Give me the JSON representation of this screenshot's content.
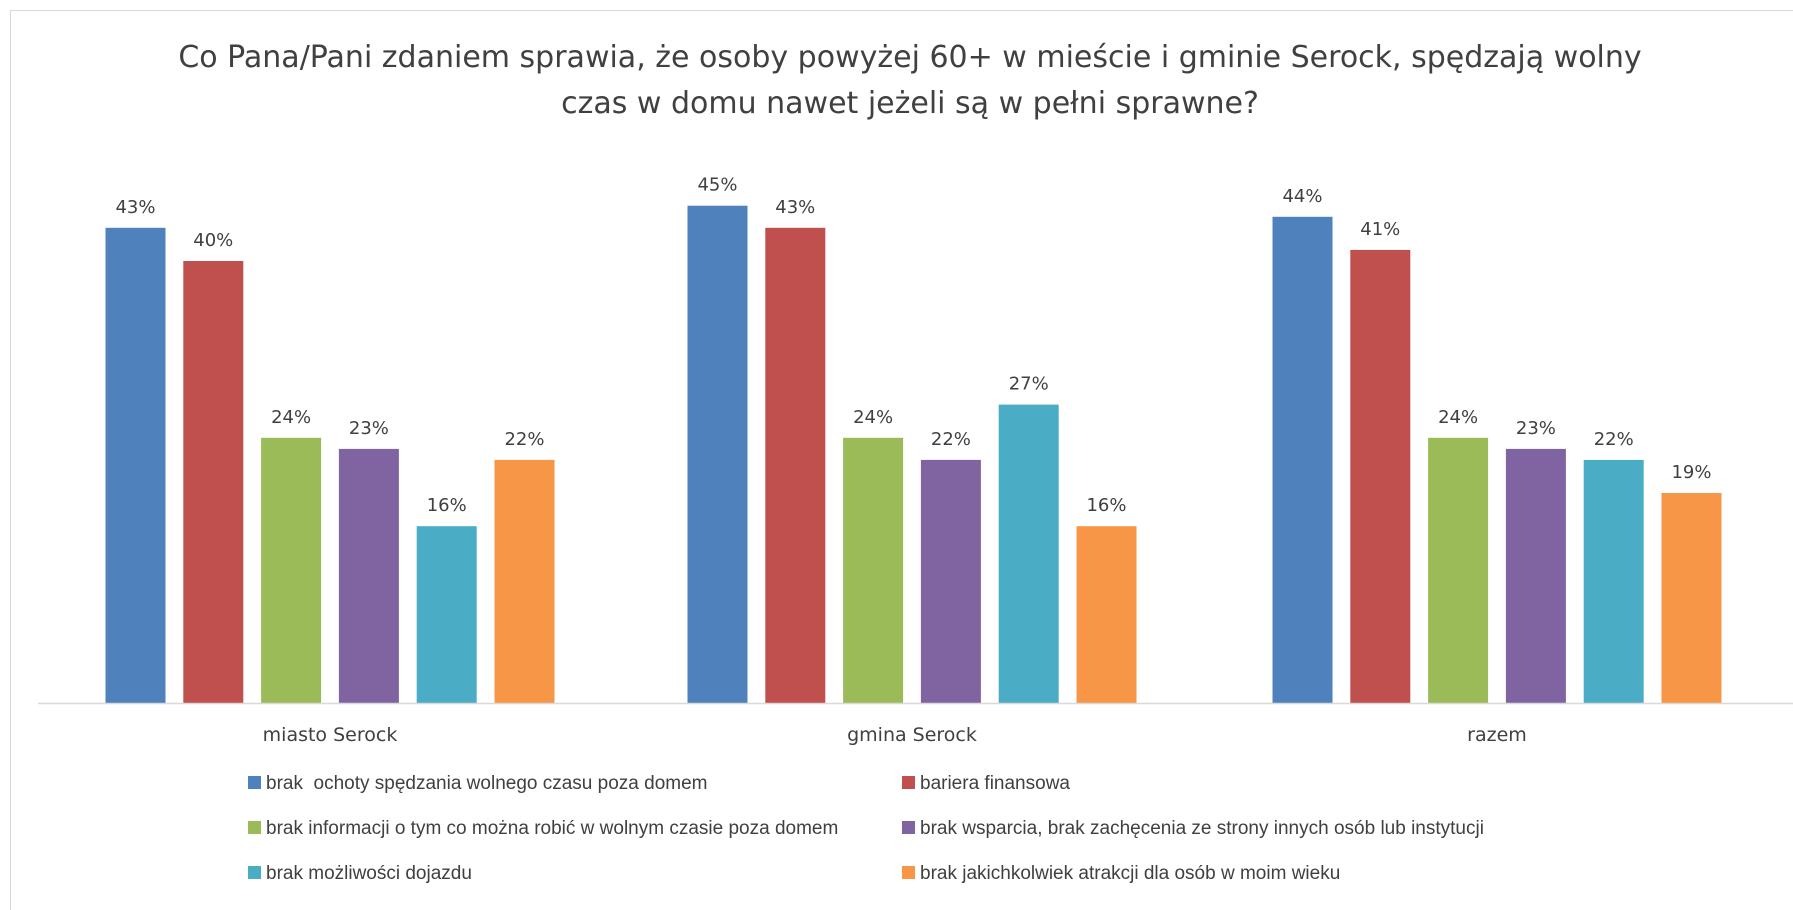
{
  "chart_data": {
    "type": "bar",
    "title_lines": [
      "Co Pana/Pani zdaniem sprawia, że osoby powyżej 60+ w mieście i gminie Serock, spędzają wolny",
      "czas w domu nawet jeżeli są w pełni sprawne?"
    ],
    "categories": [
      "miasto Serock",
      "gmina Serock",
      "razem"
    ],
    "series": [
      {
        "name": "brak  ochoty spędzania wolnego czasu poza domem",
        "color": "#4f81bd",
        "values": [
          43,
          45,
          44
        ]
      },
      {
        "name": "bariera finansowa",
        "color": "#c0504d",
        "values": [
          40,
          43,
          41
        ]
      },
      {
        "name": "brak informacji o tym co można robić w wolnym czasie poza domem",
        "color": "#9bbb59",
        "values": [
          24,
          24,
          24
        ]
      },
      {
        "name": "brak wsparcia, brak zachęcenia ze strony innych osób lub instytucji",
        "color": "#8064a2",
        "values": [
          23,
          22,
          23
        ]
      },
      {
        "name": "brak możliwości dojazdu",
        "color": "#4bacc6",
        "values": [
          16,
          27,
          22
        ]
      },
      {
        "name": "brak jakichkolwiek atrakcji dla osób w moim wieku",
        "color": "#f79646",
        "values": [
          22,
          16,
          19
        ]
      }
    ],
    "value_suffix": "%",
    "ylim": [
      0,
      50
    ],
    "y_axis_visible": false,
    "grid": false,
    "legend_position": "bottom",
    "axis_color": "#d9d9d9"
  }
}
